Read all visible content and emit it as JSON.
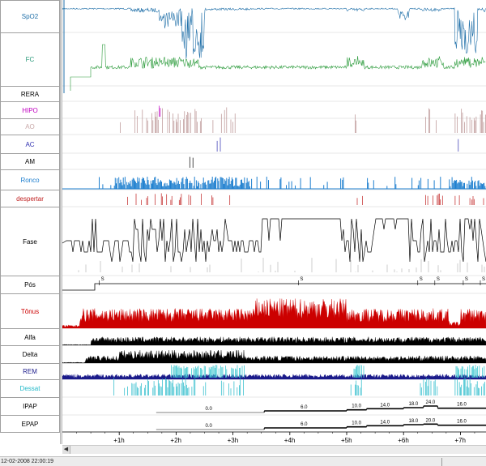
{
  "channels": [
    {
      "key": "spo2",
      "label": "SpO2",
      "color": "#1f6fa8"
    },
    {
      "key": "fc",
      "label": "FC",
      "color": "#2a9a7a"
    },
    {
      "key": "rera",
      "label": "RERA",
      "color": "#000000"
    },
    {
      "key": "hipo",
      "label": "HIPO",
      "color": "#c000c0"
    },
    {
      "key": "ao",
      "label": "AO",
      "color": "#c8a8a8"
    },
    {
      "key": "ac",
      "label": "AC",
      "color": "#3030b0"
    },
    {
      "key": "am",
      "label": "AM",
      "color": "#000000"
    },
    {
      "key": "ronco",
      "label": "Ronco",
      "color": "#1e7fcf"
    },
    {
      "key": "despertar",
      "label": "despertar",
      "color": "#c02020"
    },
    {
      "key": "fase",
      "label": "Fase",
      "color": "#000000"
    },
    {
      "key": "pos",
      "label": "Pós",
      "color": "#000000"
    },
    {
      "key": "tonus",
      "label": "Tônus",
      "color": "#cc0000"
    },
    {
      "key": "alfa",
      "label": "Alfa",
      "color": "#000000"
    },
    {
      "key": "delta",
      "label": "Delta",
      "color": "#000000"
    },
    {
      "key": "rem",
      "label": "REM",
      "color": "#1a1a8a"
    },
    {
      "key": "dessat",
      "label": "Dessat",
      "color": "#20b8c8"
    },
    {
      "key": "ipap",
      "label": "IPAP",
      "color": "#000000"
    },
    {
      "key": "epap",
      "label": "EPAP",
      "color": "#000000"
    }
  ],
  "time_axis": {
    "hours": [
      1,
      2,
      3,
      4,
      5,
      6,
      7
    ],
    "tick_labels": [
      "+1h",
      "+2h",
      "+3h",
      "+4h",
      "+5h",
      "+6h",
      "+7h"
    ],
    "range_hours": [
      0,
      7.45
    ]
  },
  "position_marks": [
    {
      "hour": 0.65,
      "label": "S"
    },
    {
      "hour": 4.15,
      "label": "S"
    },
    {
      "hour": 6.25,
      "label": "S"
    },
    {
      "hour": 6.55,
      "label": "S"
    },
    {
      "hour": 7.05,
      "label": "S"
    },
    {
      "hour": 7.35,
      "label": "S"
    }
  ],
  "ipap_steps": [
    {
      "start": 1.65,
      "end": 3.55,
      "value": "0.0"
    },
    {
      "start": 3.55,
      "end": 5.0,
      "value": "6.0"
    },
    {
      "start": 5.0,
      "end": 5.35,
      "value": "10.0"
    },
    {
      "start": 5.35,
      "end": 6.0,
      "value": "14.0"
    },
    {
      "start": 6.0,
      "end": 6.35,
      "value": "18.0"
    },
    {
      "start": 6.35,
      "end": 6.6,
      "value": "24.0"
    },
    {
      "start": 6.6,
      "end": 7.45,
      "value": "16.0"
    }
  ],
  "epap_steps": [
    {
      "start": 1.65,
      "end": 3.55,
      "value": "0.0"
    },
    {
      "start": 3.55,
      "end": 5.0,
      "value": "6.0"
    },
    {
      "start": 5.0,
      "end": 5.35,
      "value": "10.0"
    },
    {
      "start": 5.35,
      "end": 6.0,
      "value": "14.0"
    },
    {
      "start": 6.0,
      "end": 6.35,
      "value": "18.0"
    },
    {
      "start": 6.35,
      "end": 6.6,
      "value": "20.0"
    },
    {
      "start": 6.6,
      "end": 7.45,
      "value": "16.0"
    }
  ],
  "status": {
    "datetime": "12-02-2008 22:00:19"
  },
  "scrollbar": {
    "left_arrow": "◀"
  }
}
